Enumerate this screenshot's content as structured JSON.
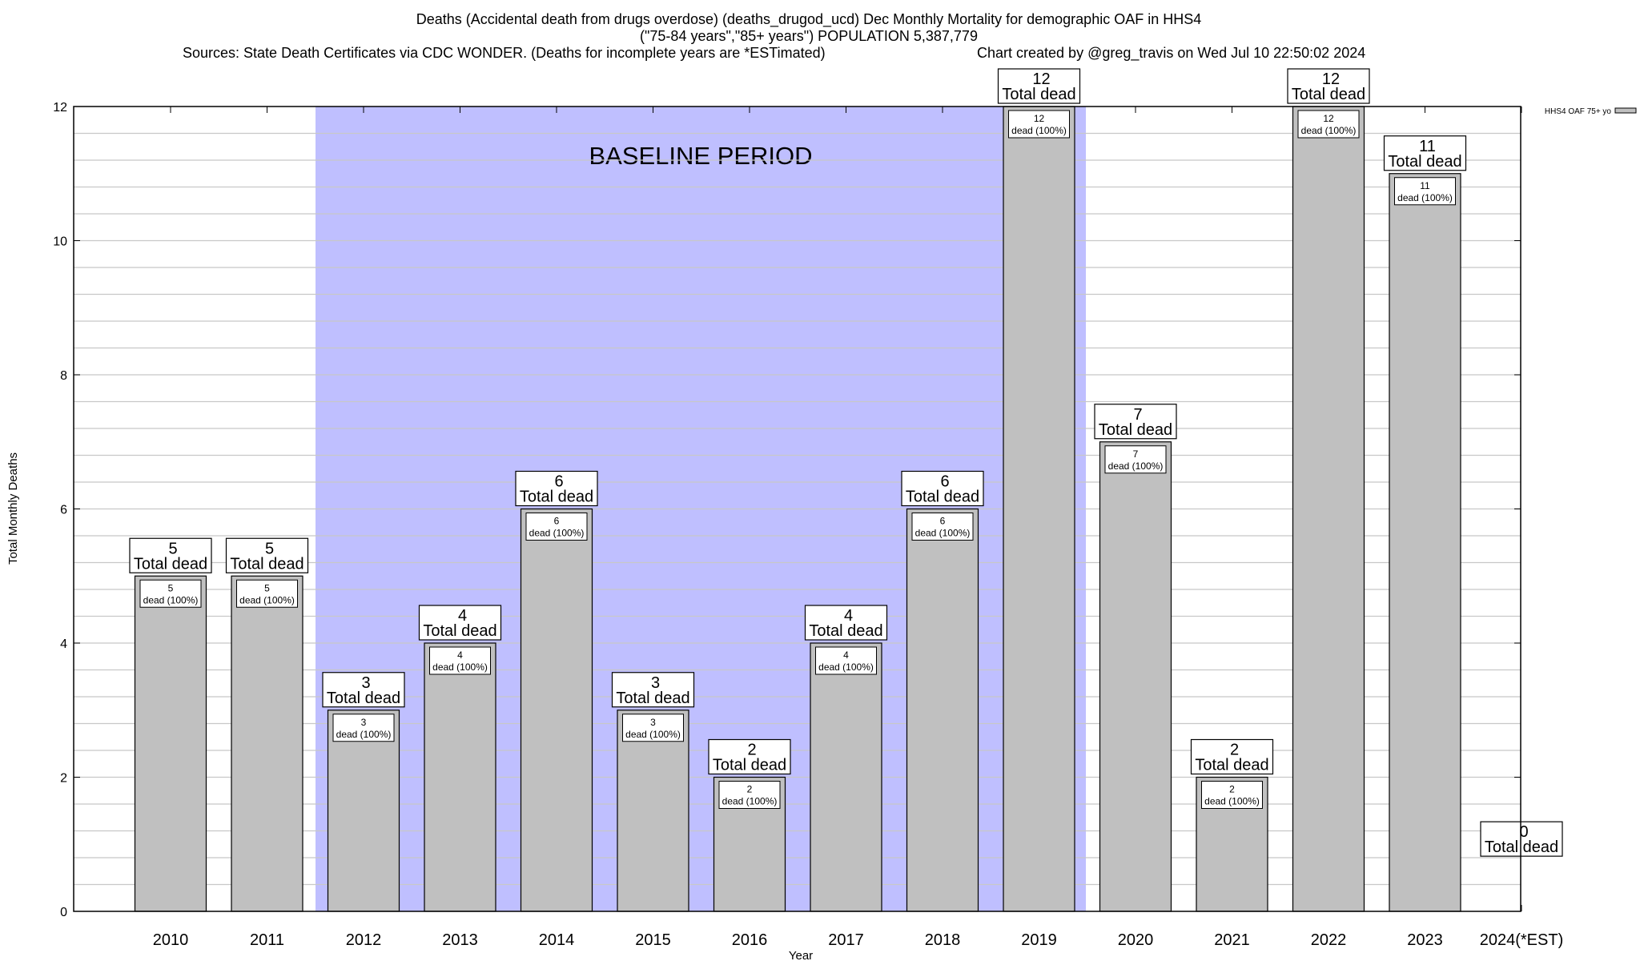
{
  "chart_data": {
    "type": "bar",
    "title_lines": [
      "Deaths (Accidental death from drugs overdose) (deaths_drugod_ucd) Dec Monthly Mortality for demographic OAF in HHS4",
      "(\"75-84 years\",\"85+ years\") POPULATION 5,387,779"
    ],
    "sources": "Sources: State Death Certificates via CDC WONDER. (Deaths for incomplete years are *ESTimated)",
    "credit": "Chart created by @greg_travis on Wed Jul 10 22:50:02 2024",
    "xlabel": "Year",
    "ylabel": "Total Monthly Deaths",
    "ylim": [
      0,
      12
    ],
    "yticks": [
      0,
      2,
      4,
      6,
      8,
      10,
      12
    ],
    "categories": [
      "2010",
      "2011",
      "2012",
      "2013",
      "2014",
      "2015",
      "2016",
      "2017",
      "2018",
      "2019",
      "2020",
      "2021",
      "2022",
      "2023",
      "2024(*EST)"
    ],
    "values": [
      5,
      5,
      3,
      4,
      6,
      3,
      2,
      4,
      6,
      12,
      7,
      2,
      12,
      11,
      0
    ],
    "inner_labels": [
      "dead (100%)",
      "dead (100%)",
      "dead (100%)",
      "dead (100%)",
      "dead (100%)",
      "dead (100%)",
      "dead (100%)",
      "dead (100%)",
      "dead (100%)",
      "dead (100%)",
      "dead (100%)",
      "dead (100%)",
      "dead (100%)",
      "dead (100%)",
      null
    ],
    "total_label": "Total dead",
    "baseline": {
      "label": "BASELINE PERIOD",
      "from": "2012",
      "to": "2019"
    },
    "legend": {
      "label": "HHS4 OAF 75+ yo",
      "position": "top-right"
    },
    "grid": true,
    "colors": {
      "bar": "#c0c0c0",
      "baseline": "#bfbfff"
    }
  }
}
